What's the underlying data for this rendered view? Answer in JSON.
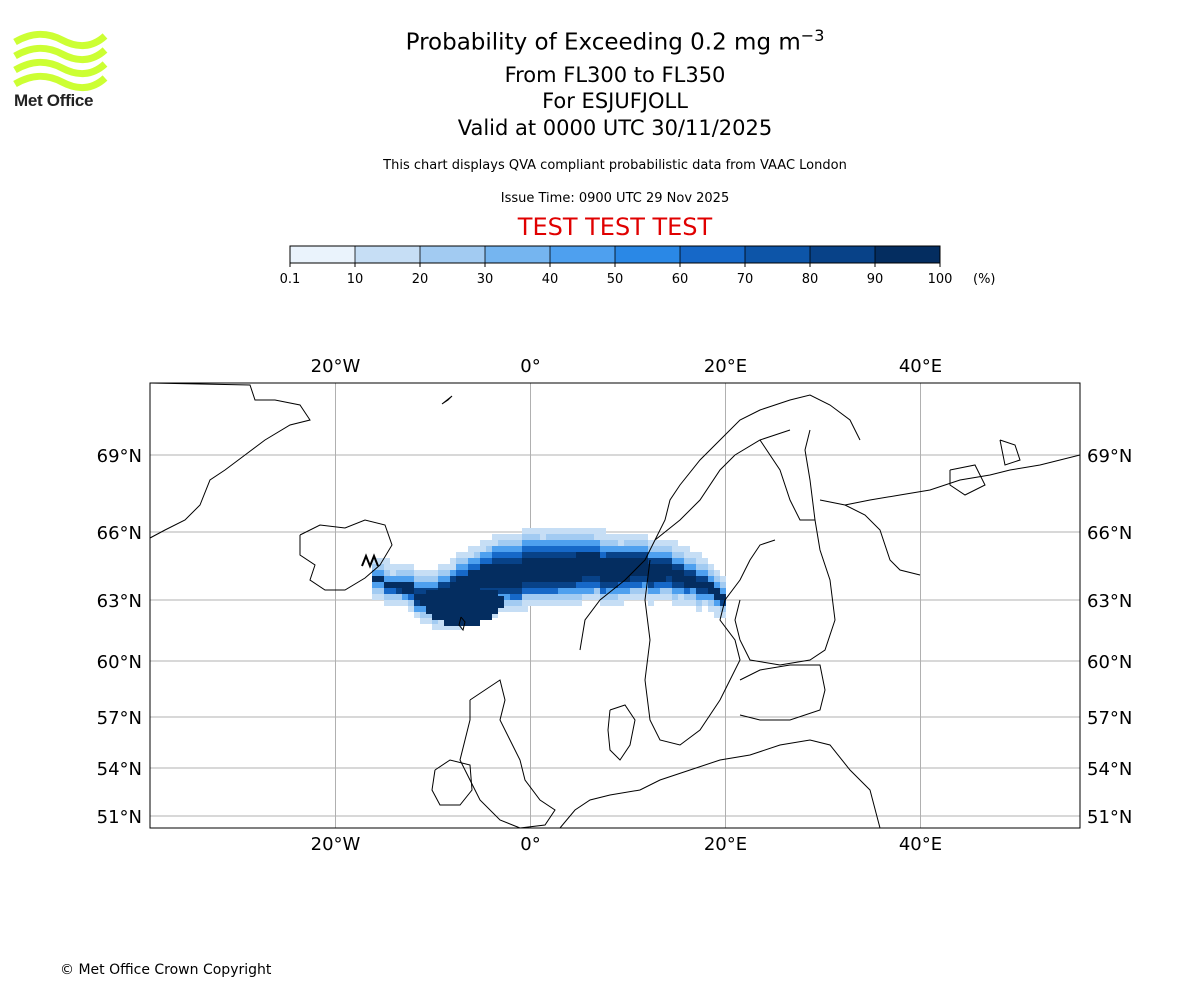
{
  "logo": {
    "name": "Met Office",
    "color": "#ccff33"
  },
  "title": {
    "line1_prefix": "Probability of Exceeding 0.2 mg m",
    "line1_exponent": "−3",
    "line2": "From FL300 to FL350",
    "line3": "For ESJUFJOLL",
    "line4": "Valid at 0000 UTC 30/11/2025"
  },
  "note": "This chart displays QVA compliant probabilistic data from VAAC London",
  "issue_time": "Issue Time: 0900 UTC 29 Nov 2025",
  "test_banner": "TEST TEST TEST",
  "colorbar": {
    "ticks": [
      "0.1",
      "10",
      "20",
      "30",
      "40",
      "50",
      "60",
      "70",
      "80",
      "90",
      "100"
    ],
    "unit": "(%)",
    "colors": [
      "#eaf3fc",
      "#c6def5",
      "#a2cbf2",
      "#75b5f0",
      "#4ea0ef",
      "#2a88e6",
      "#1668c8",
      "#0d55a8",
      "#084288",
      "#042d60"
    ]
  },
  "map": {
    "lon_labels": [
      "20°W",
      "0°",
      "20°E",
      "40°E"
    ],
    "lat_labels": [
      "69°N",
      "66°N",
      "63°N",
      "60°N",
      "57°N",
      "54°N",
      "51°N"
    ],
    "plume_source": "Esjufjöll, Iceland"
  },
  "copyright": "© Met Office Crown Copyright"
}
